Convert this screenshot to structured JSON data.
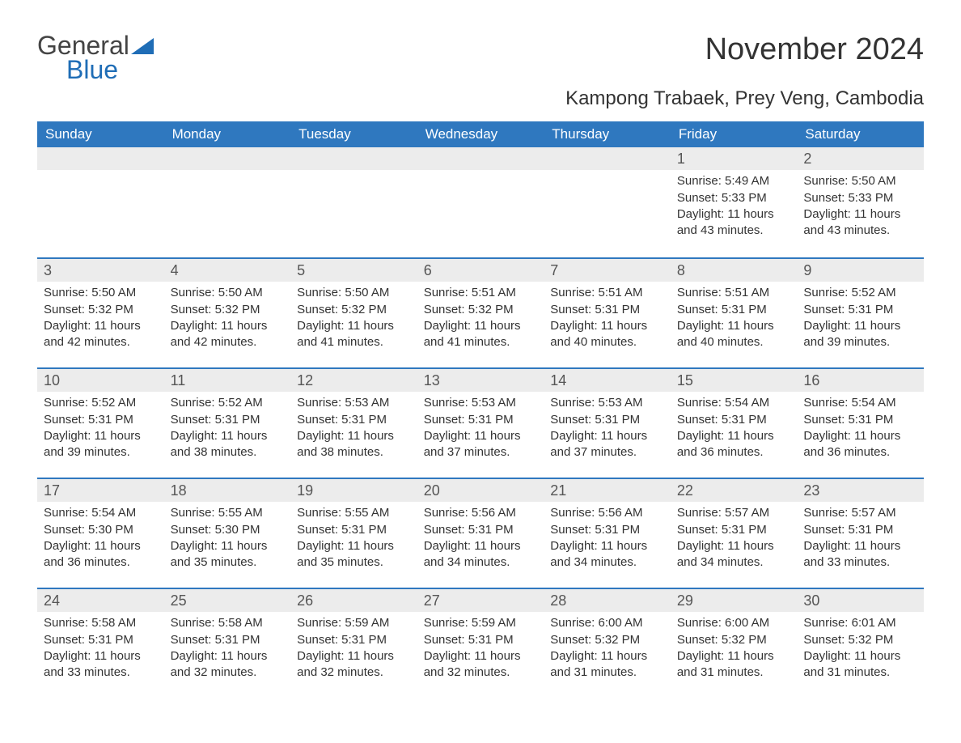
{
  "brand": {
    "general": "General",
    "blue": "Blue"
  },
  "title": "November 2024",
  "subtitle": "Kampong Trabaek, Prey Veng, Cambodia",
  "colors": {
    "header_bg": "#2f78bf",
    "header_text": "#ffffff",
    "daynum_bg": "#ececec",
    "week_border": "#2f78bf",
    "body_text": "#333333",
    "brand_blue": "#1f6db6",
    "brand_gray": "#444444",
    "page_bg": "#ffffff"
  },
  "typography": {
    "title_fontsize": 38,
    "subtitle_fontsize": 24,
    "dow_fontsize": 17,
    "daynum_fontsize": 18,
    "body_fontsize": 15,
    "font_family": "Arial"
  },
  "calendar": {
    "days_of_week": [
      "Sunday",
      "Monday",
      "Tuesday",
      "Wednesday",
      "Thursday",
      "Friday",
      "Saturday"
    ],
    "weeks": [
      [
        {
          "day": "",
          "sunrise": "",
          "sunset": "",
          "daylight": ""
        },
        {
          "day": "",
          "sunrise": "",
          "sunset": "",
          "daylight": ""
        },
        {
          "day": "",
          "sunrise": "",
          "sunset": "",
          "daylight": ""
        },
        {
          "day": "",
          "sunrise": "",
          "sunset": "",
          "daylight": ""
        },
        {
          "day": "",
          "sunrise": "",
          "sunset": "",
          "daylight": ""
        },
        {
          "day": "1",
          "sunrise": "Sunrise: 5:49 AM",
          "sunset": "Sunset: 5:33 PM",
          "daylight": "Daylight: 11 hours and 43 minutes."
        },
        {
          "day": "2",
          "sunrise": "Sunrise: 5:50 AM",
          "sunset": "Sunset: 5:33 PM",
          "daylight": "Daylight: 11 hours and 43 minutes."
        }
      ],
      [
        {
          "day": "3",
          "sunrise": "Sunrise: 5:50 AM",
          "sunset": "Sunset: 5:32 PM",
          "daylight": "Daylight: 11 hours and 42 minutes."
        },
        {
          "day": "4",
          "sunrise": "Sunrise: 5:50 AM",
          "sunset": "Sunset: 5:32 PM",
          "daylight": "Daylight: 11 hours and 42 minutes."
        },
        {
          "day": "5",
          "sunrise": "Sunrise: 5:50 AM",
          "sunset": "Sunset: 5:32 PM",
          "daylight": "Daylight: 11 hours and 41 minutes."
        },
        {
          "day": "6",
          "sunrise": "Sunrise: 5:51 AM",
          "sunset": "Sunset: 5:32 PM",
          "daylight": "Daylight: 11 hours and 41 minutes."
        },
        {
          "day": "7",
          "sunrise": "Sunrise: 5:51 AM",
          "sunset": "Sunset: 5:31 PM",
          "daylight": "Daylight: 11 hours and 40 minutes."
        },
        {
          "day": "8",
          "sunrise": "Sunrise: 5:51 AM",
          "sunset": "Sunset: 5:31 PM",
          "daylight": "Daylight: 11 hours and 40 minutes."
        },
        {
          "day": "9",
          "sunrise": "Sunrise: 5:52 AM",
          "sunset": "Sunset: 5:31 PM",
          "daylight": "Daylight: 11 hours and 39 minutes."
        }
      ],
      [
        {
          "day": "10",
          "sunrise": "Sunrise: 5:52 AM",
          "sunset": "Sunset: 5:31 PM",
          "daylight": "Daylight: 11 hours and 39 minutes."
        },
        {
          "day": "11",
          "sunrise": "Sunrise: 5:52 AM",
          "sunset": "Sunset: 5:31 PM",
          "daylight": "Daylight: 11 hours and 38 minutes."
        },
        {
          "day": "12",
          "sunrise": "Sunrise: 5:53 AM",
          "sunset": "Sunset: 5:31 PM",
          "daylight": "Daylight: 11 hours and 38 minutes."
        },
        {
          "day": "13",
          "sunrise": "Sunrise: 5:53 AM",
          "sunset": "Sunset: 5:31 PM",
          "daylight": "Daylight: 11 hours and 37 minutes."
        },
        {
          "day": "14",
          "sunrise": "Sunrise: 5:53 AM",
          "sunset": "Sunset: 5:31 PM",
          "daylight": "Daylight: 11 hours and 37 minutes."
        },
        {
          "day": "15",
          "sunrise": "Sunrise: 5:54 AM",
          "sunset": "Sunset: 5:31 PM",
          "daylight": "Daylight: 11 hours and 36 minutes."
        },
        {
          "day": "16",
          "sunrise": "Sunrise: 5:54 AM",
          "sunset": "Sunset: 5:31 PM",
          "daylight": "Daylight: 11 hours and 36 minutes."
        }
      ],
      [
        {
          "day": "17",
          "sunrise": "Sunrise: 5:54 AM",
          "sunset": "Sunset: 5:30 PM",
          "daylight": "Daylight: 11 hours and 36 minutes."
        },
        {
          "day": "18",
          "sunrise": "Sunrise: 5:55 AM",
          "sunset": "Sunset: 5:30 PM",
          "daylight": "Daylight: 11 hours and 35 minutes."
        },
        {
          "day": "19",
          "sunrise": "Sunrise: 5:55 AM",
          "sunset": "Sunset: 5:31 PM",
          "daylight": "Daylight: 11 hours and 35 minutes."
        },
        {
          "day": "20",
          "sunrise": "Sunrise: 5:56 AM",
          "sunset": "Sunset: 5:31 PM",
          "daylight": "Daylight: 11 hours and 34 minutes."
        },
        {
          "day": "21",
          "sunrise": "Sunrise: 5:56 AM",
          "sunset": "Sunset: 5:31 PM",
          "daylight": "Daylight: 11 hours and 34 minutes."
        },
        {
          "day": "22",
          "sunrise": "Sunrise: 5:57 AM",
          "sunset": "Sunset: 5:31 PM",
          "daylight": "Daylight: 11 hours and 34 minutes."
        },
        {
          "day": "23",
          "sunrise": "Sunrise: 5:57 AM",
          "sunset": "Sunset: 5:31 PM",
          "daylight": "Daylight: 11 hours and 33 minutes."
        }
      ],
      [
        {
          "day": "24",
          "sunrise": "Sunrise: 5:58 AM",
          "sunset": "Sunset: 5:31 PM",
          "daylight": "Daylight: 11 hours and 33 minutes."
        },
        {
          "day": "25",
          "sunrise": "Sunrise: 5:58 AM",
          "sunset": "Sunset: 5:31 PM",
          "daylight": "Daylight: 11 hours and 32 minutes."
        },
        {
          "day": "26",
          "sunrise": "Sunrise: 5:59 AM",
          "sunset": "Sunset: 5:31 PM",
          "daylight": "Daylight: 11 hours and 32 minutes."
        },
        {
          "day": "27",
          "sunrise": "Sunrise: 5:59 AM",
          "sunset": "Sunset: 5:31 PM",
          "daylight": "Daylight: 11 hours and 32 minutes."
        },
        {
          "day": "28",
          "sunrise": "Sunrise: 6:00 AM",
          "sunset": "Sunset: 5:32 PM",
          "daylight": "Daylight: 11 hours and 31 minutes."
        },
        {
          "day": "29",
          "sunrise": "Sunrise: 6:00 AM",
          "sunset": "Sunset: 5:32 PM",
          "daylight": "Daylight: 11 hours and 31 minutes."
        },
        {
          "day": "30",
          "sunrise": "Sunrise: 6:01 AM",
          "sunset": "Sunset: 5:32 PM",
          "daylight": "Daylight: 11 hours and 31 minutes."
        }
      ]
    ]
  }
}
